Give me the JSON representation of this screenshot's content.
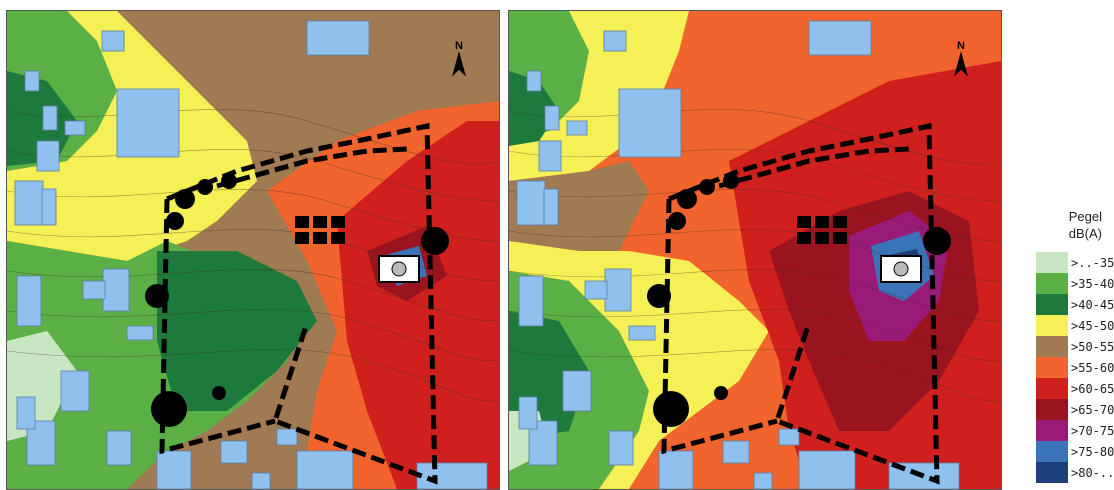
{
  "legend": {
    "title_line1": "Pegel",
    "title_line2": "dB(A)",
    "items": [
      {
        "label": ">..-35",
        "color": "#c8e6c2"
      },
      {
        "label": ">35-40",
        "color": "#5bb045"
      },
      {
        "label": ">40-45",
        "color": "#1e7a3c"
      },
      {
        "label": ">45-50",
        "color": "#f5f055"
      },
      {
        "label": ">50-55",
        "color": "#a07a52"
      },
      {
        "label": ">55-60",
        "color": "#f2642d"
      },
      {
        "label": ">60-65",
        "color": "#d0201e"
      },
      {
        "label": ">65-70",
        "color": "#9a1420"
      },
      {
        "label": ">70-75",
        "color": "#9a1a78"
      },
      {
        "label": ">75-80",
        "color": "#3a73b8"
      },
      {
        "label": ">80-..",
        "color": "#1c3f7a"
      }
    ]
  },
  "maps": [
    {
      "id": "left",
      "north_label": "N"
    },
    {
      "id": "right",
      "north_label": "N"
    }
  ],
  "building_color": "#8fc0ee"
}
